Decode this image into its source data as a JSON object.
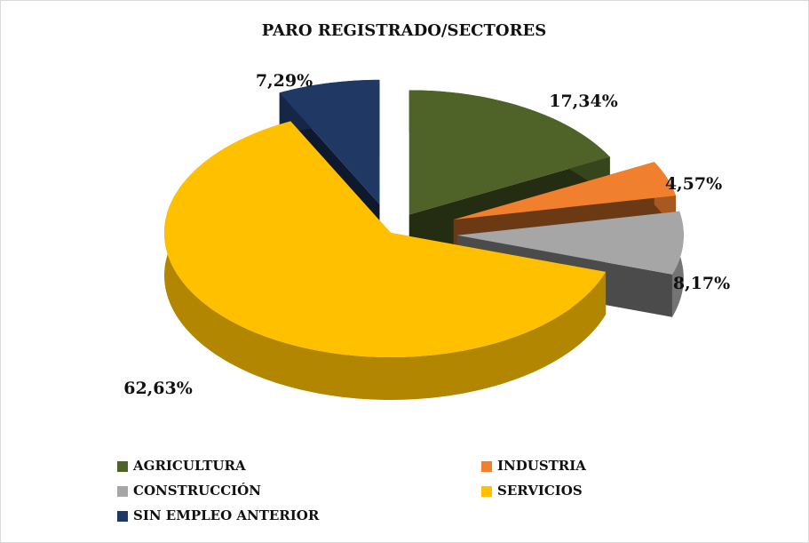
{
  "chart_data": {
    "type": "pie3d",
    "title": "PARO REGISTRADO/SECTORES",
    "categories": [
      "AGRICULTURA",
      "INDUSTRIA",
      "CONSTRUCCIÓN",
      "SERVICIOS",
      "SIN EMPLEO ANTERIOR"
    ],
    "values": [
      17.34,
      4.57,
      8.17,
      62.63,
      7.29
    ],
    "value_labels": [
      "17,34%",
      "4,57%",
      "8,17%",
      "62,63%",
      "7,29%"
    ],
    "colors": [
      "#4f6228",
      "#f07f2e",
      "#a6a6a6",
      "#ffc000",
      "#1f3864"
    ],
    "legend": "bottom"
  }
}
